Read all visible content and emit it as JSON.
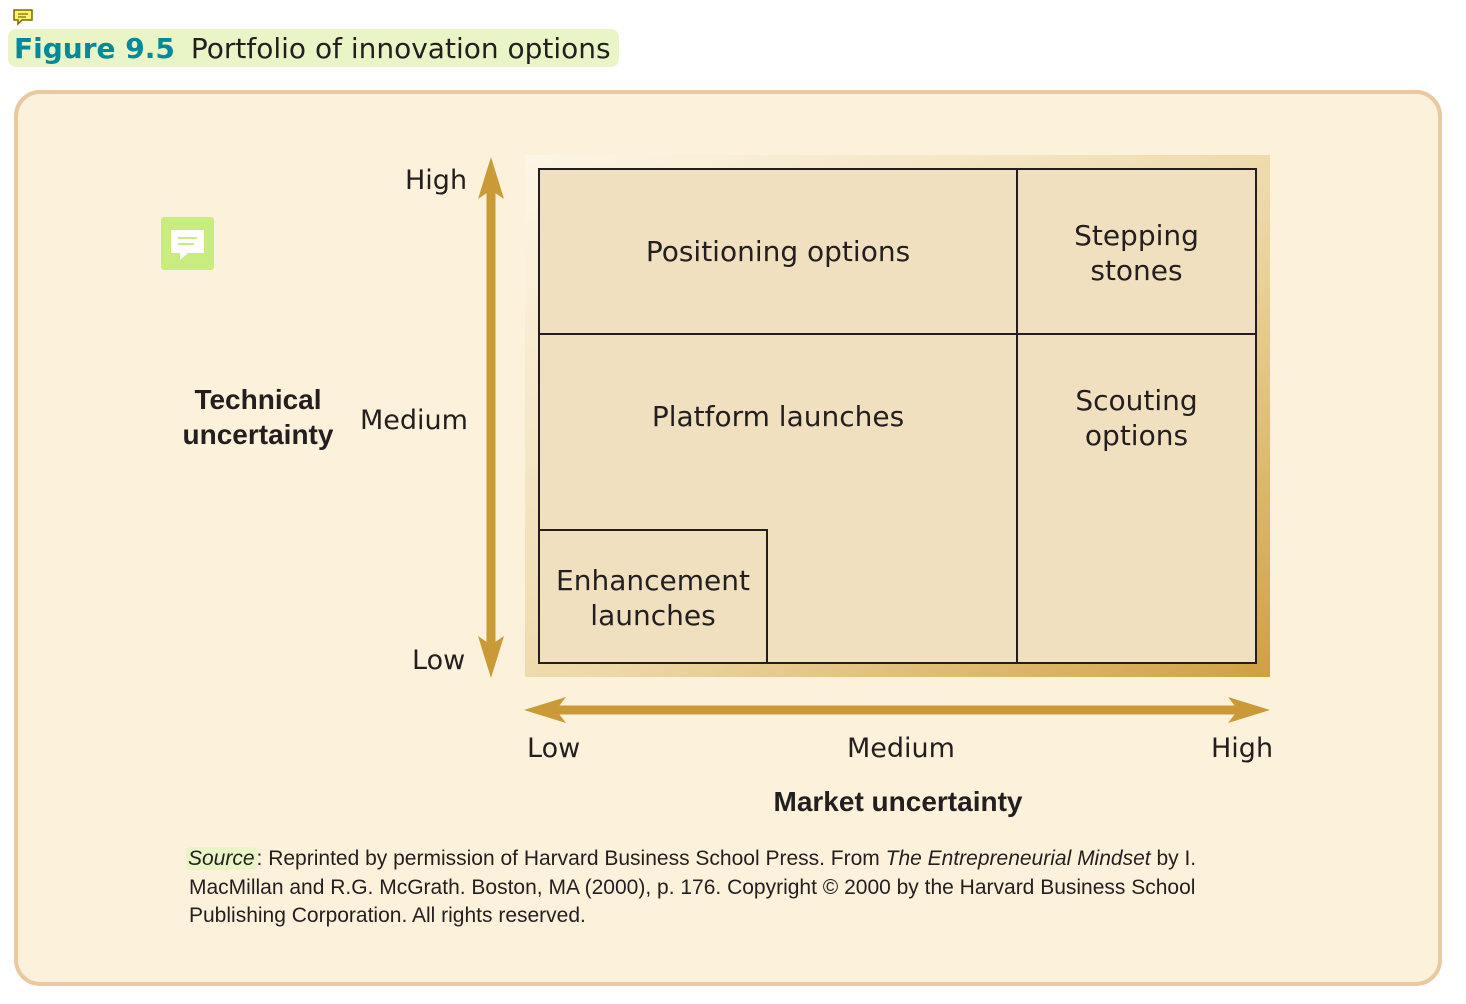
{
  "figure": {
    "label": "Figure 9.5",
    "title": "Portfolio of innovation options"
  },
  "icons": [
    "comment-icon",
    "note-icon"
  ],
  "colors": {
    "caption_label": "#008a9a",
    "caption_highlight": "#e9f5c7",
    "panel_background": "#fcf1da",
    "panel_border": "#e8c9a0",
    "arrow": "#c99a35",
    "cell_fill": "#f0e0bf"
  },
  "diagram": {
    "y_axis": {
      "title_line1": "Technical",
      "title_line2": "uncertainty",
      "high": "High",
      "medium": "Medium",
      "low": "Low"
    },
    "x_axis": {
      "title": "Market uncertainty",
      "low": "Low",
      "medium": "Medium",
      "high": "High"
    },
    "cells": {
      "positioning": "Positioning options",
      "stepping_line1": "Stepping",
      "stepping_line2": "stones",
      "platform": "Platform launches",
      "scouting_line1": "Scouting",
      "scouting_line2": "options",
      "enhancement_line1": "Enhancement",
      "enhancement_line2": "launches"
    }
  },
  "source": {
    "label": "Source",
    "text1": ": Reprinted by permission of Harvard Business School Press. From ",
    "book": "The Entrepreneurial Mindset",
    "text2": " by I. MacMillan and R.G. McGrath. Boston, MA (2000), p. 176. Copyright © 2000 by the Harvard Business School Publishing Corporation. All rights reserved."
  }
}
